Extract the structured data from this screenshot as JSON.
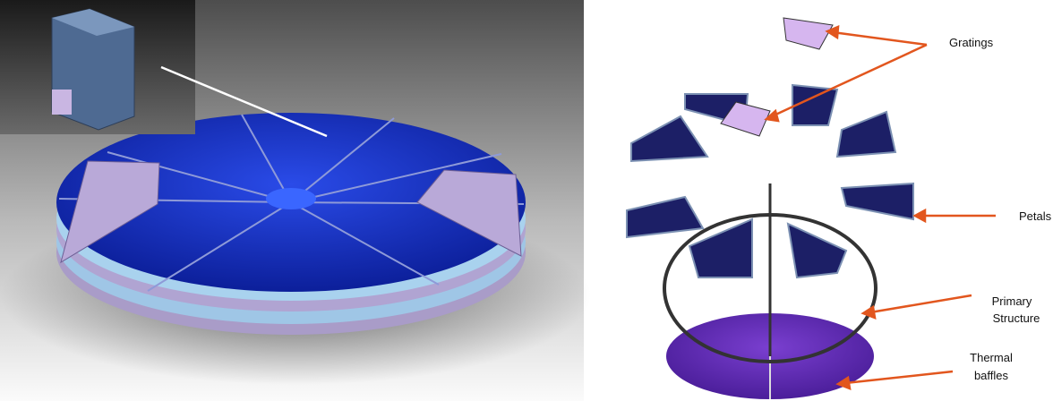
{
  "labels": [
    {
      "lines": [
        "Gratings"
      ]
    },
    {
      "lines": [
        "Petals"
      ]
    },
    {
      "lines": [
        "Primary",
        "Structure"
      ]
    },
    {
      "lines": [
        "Thermal",
        "baffles"
      ]
    }
  ]
}
